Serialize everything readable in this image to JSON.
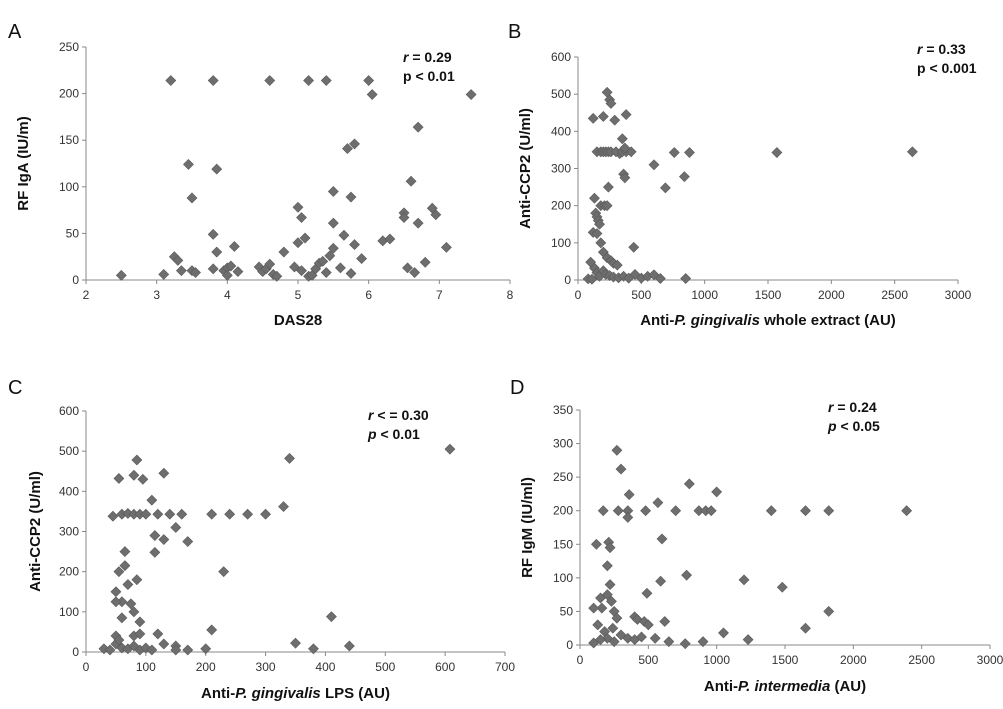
{
  "chart_data": [
    {
      "panel": "A",
      "type": "scatter",
      "xlabel": [
        {
          "t": "DAS28"
        }
      ],
      "ylabel": [
        {
          "t": "RF IgA (IU/m)"
        }
      ],
      "xlim": [
        2,
        8
      ],
      "ylim": [
        0,
        250
      ],
      "xticks": [
        "2",
        "3",
        "4",
        "5",
        "6",
        "7",
        "8"
      ],
      "yticks": [
        "0",
        "50",
        "100",
        "150",
        "200",
        "250"
      ],
      "annotation": [
        [
          {
            "t": "r",
            "i": true
          },
          {
            "t": " = 0.29"
          }
        ],
        [
          {
            "t": "p < 0.01"
          }
        ]
      ],
      "points": [
        [
          2.5,
          5
        ],
        [
          3.2,
          214
        ],
        [
          3.8,
          214
        ],
        [
          4.6,
          214
        ],
        [
          5.15,
          214
        ],
        [
          5.4,
          214
        ],
        [
          6.0,
          214
        ],
        [
          6.05,
          199
        ],
        [
          7.45,
          199
        ],
        [
          3.45,
          124
        ],
        [
          3.85,
          119
        ],
        [
          3.5,
          88
        ],
        [
          3.25,
          25
        ],
        [
          3.3,
          21
        ],
        [
          3.1,
          6
        ],
        [
          3.35,
          10
        ],
        [
          3.5,
          10
        ],
        [
          3.55,
          8
        ],
        [
          3.8,
          49
        ],
        [
          3.85,
          30
        ],
        [
          3.8,
          12
        ],
        [
          3.95,
          10
        ],
        [
          4.0,
          13
        ],
        [
          4.05,
          15
        ],
        [
          4.1,
          36
        ],
        [
          4.15,
          9
        ],
        [
          4.0,
          5
        ],
        [
          4.45,
          14
        ],
        [
          4.5,
          9
        ],
        [
          4.55,
          12
        ],
        [
          4.6,
          17
        ],
        [
          4.65,
          6
        ],
        [
          4.7,
          4
        ],
        [
          4.8,
          30
        ],
        [
          4.95,
          14
        ],
        [
          5.0,
          40
        ],
        [
          5.0,
          78
        ],
        [
          5.05,
          67
        ],
        [
          5.1,
          45
        ],
        [
          5.05,
          10
        ],
        [
          5.15,
          4
        ],
        [
          5.2,
          5
        ],
        [
          5.25,
          12
        ],
        [
          5.3,
          18
        ],
        [
          5.35,
          20
        ],
        [
          5.4,
          8
        ],
        [
          5.45,
          26
        ],
        [
          5.5,
          34
        ],
        [
          5.5,
          61
        ],
        [
          5.5,
          95
        ],
        [
          5.6,
          13
        ],
        [
          5.65,
          48
        ],
        [
          5.7,
          141
        ],
        [
          5.75,
          7
        ],
        [
          5.75,
          89
        ],
        [
          5.8,
          146
        ],
        [
          5.8,
          38
        ],
        [
          5.9,
          23
        ],
        [
          6.2,
          42
        ],
        [
          6.3,
          44
        ],
        [
          6.5,
          72
        ],
        [
          6.5,
          67
        ],
        [
          6.55,
          13
        ],
        [
          6.6,
          106
        ],
        [
          6.65,
          8
        ],
        [
          6.7,
          61
        ],
        [
          6.7,
          164
        ],
        [
          6.8,
          19
        ],
        [
          6.9,
          77
        ],
        [
          6.95,
          70
        ],
        [
          7.1,
          35
        ]
      ]
    },
    {
      "panel": "B",
      "type": "scatter",
      "xlabel": [
        {
          "t": "Anti-"
        },
        {
          "t": "P. gingivalis",
          "i": true
        },
        {
          "t": " whole extract (AU)"
        }
      ],
      "ylabel": [
        {
          "t": "Anti-CCP2 (U/ml)"
        }
      ],
      "xlim": [
        0,
        3000
      ],
      "ylim": [
        0,
        600
      ],
      "xticks": [
        "0",
        "500",
        "1000",
        "1500",
        "2000",
        "2500",
        "3000"
      ],
      "yticks": [
        "0",
        "100",
        "200",
        "300",
        "400",
        "500",
        "600"
      ],
      "annotation": [
        [
          {
            "t": "r",
            "i": true
          },
          {
            "t": " = 0.33"
          }
        ],
        [
          {
            "t": "p < 0.001"
          }
        ]
      ],
      "points": [
        [
          230,
          505
        ],
        [
          250,
          485
        ],
        [
          260,
          475
        ],
        [
          200,
          440
        ],
        [
          120,
          435
        ],
        [
          380,
          445
        ],
        [
          350,
          380
        ],
        [
          290,
          430
        ],
        [
          330,
          340
        ],
        [
          150,
          345
        ],
        [
          180,
          345
        ],
        [
          200,
          345
        ],
        [
          220,
          345
        ],
        [
          240,
          345
        ],
        [
          260,
          345
        ],
        [
          300,
          345
        ],
        [
          350,
          345
        ],
        [
          380,
          345
        ],
        [
          420,
          345
        ],
        [
          370,
          355
        ],
        [
          360,
          285
        ],
        [
          370,
          275
        ],
        [
          600,
          310
        ],
        [
          690,
          248
        ],
        [
          760,
          343
        ],
        [
          880,
          343
        ],
        [
          840,
          278
        ],
        [
          1570,
          343
        ],
        [
          2640,
          345
        ],
        [
          240,
          250
        ],
        [
          130,
          220
        ],
        [
          140,
          180
        ],
        [
          150,
          170
        ],
        [
          160,
          160
        ],
        [
          170,
          150
        ],
        [
          180,
          200
        ],
        [
          210,
          200
        ],
        [
          230,
          200
        ],
        [
          120,
          128
        ],
        [
          150,
          125
        ],
        [
          180,
          100
        ],
        [
          200,
          75
        ],
        [
          230,
          60
        ],
        [
          260,
          52
        ],
        [
          280,
          45
        ],
        [
          310,
          40
        ],
        [
          440,
          88
        ],
        [
          100,
          48
        ],
        [
          130,
          32
        ],
        [
          150,
          20
        ],
        [
          170,
          10
        ],
        [
          200,
          25
        ],
        [
          220,
          15
        ],
        [
          250,
          12
        ],
        [
          280,
          8
        ],
        [
          320,
          6
        ],
        [
          360,
          10
        ],
        [
          400,
          5
        ],
        [
          450,
          15
        ],
        [
          500,
          5
        ],
        [
          550,
          10
        ],
        [
          600,
          14
        ],
        [
          650,
          4
        ],
        [
          850,
          4
        ],
        [
          80,
          3
        ],
        [
          110,
          2
        ]
      ]
    },
    {
      "panel": "C",
      "type": "scatter",
      "xlabel": [
        {
          "t": "Anti-"
        },
        {
          "t": "P. gingivalis",
          "i": true
        },
        {
          "t": " LPS (AU)"
        }
      ],
      "ylabel": [
        {
          "t": "Anti-CCP2 (U/ml)"
        }
      ],
      "xlim": [
        0,
        700
      ],
      "ylim": [
        0,
        600
      ],
      "xticks": [
        "0",
        "100",
        "200",
        "300",
        "400",
        "500",
        "600",
        "700"
      ],
      "yticks": [
        "0",
        "100",
        "200",
        "300",
        "400",
        "500",
        "600"
      ],
      "annotation": [
        [
          {
            "t": "r",
            "i": true
          },
          {
            "t": " < = 0.30"
          }
        ],
        [
          {
            "t": "p",
            "i": true
          },
          {
            "t": " < 0.01"
          }
        ]
      ],
      "points": [
        [
          608,
          505
        ],
        [
          340,
          482
        ],
        [
          85,
          478
        ],
        [
          80,
          440
        ],
        [
          95,
          430
        ],
        [
          130,
          445
        ],
        [
          55,
          432
        ],
        [
          110,
          378
        ],
        [
          45,
          338
        ],
        [
          60,
          343
        ],
        [
          70,
          345
        ],
        [
          80,
          343
        ],
        [
          90,
          343
        ],
        [
          100,
          343
        ],
        [
          120,
          343
        ],
        [
          140,
          343
        ],
        [
          160,
          343
        ],
        [
          210,
          343
        ],
        [
          240,
          343
        ],
        [
          270,
          343
        ],
        [
          300,
          343
        ],
        [
          330,
          362
        ],
        [
          115,
          290
        ],
        [
          130,
          280
        ],
        [
          150,
          310
        ],
        [
          170,
          275
        ],
        [
          115,
          248
        ],
        [
          65,
          250
        ],
        [
          55,
          200
        ],
        [
          65,
          215
        ],
        [
          85,
          180
        ],
        [
          70,
          168
        ],
        [
          230,
          200
        ],
        [
          50,
          150
        ],
        [
          60,
          125
        ],
        [
          50,
          125
        ],
        [
          75,
          120
        ],
        [
          80,
          100
        ],
        [
          60,
          85
        ],
        [
          90,
          75
        ],
        [
          80,
          40
        ],
        [
          90,
          45
        ],
        [
          120,
          45
        ],
        [
          50,
          40
        ],
        [
          210,
          55
        ],
        [
          410,
          88
        ],
        [
          30,
          8
        ],
        [
          40,
          5
        ],
        [
          50,
          20
        ],
        [
          55,
          30
        ],
        [
          60,
          10
        ],
        [
          70,
          8
        ],
        [
          80,
          15
        ],
        [
          90,
          5
        ],
        [
          100,
          10
        ],
        [
          110,
          5
        ],
        [
          130,
          20
        ],
        [
          150,
          15
        ],
        [
          170,
          5
        ],
        [
          200,
          8
        ],
        [
          350,
          22
        ],
        [
          380,
          8
        ],
        [
          440,
          15
        ],
        [
          150,
          5
        ]
      ]
    },
    {
      "panel": "D",
      "type": "scatter",
      "xlabel": [
        {
          "t": "Anti-"
        },
        {
          "t": "P. intermedia",
          "i": true
        },
        {
          "t": " (AU)"
        }
      ],
      "ylabel": [
        {
          "t": "RF  IgM (IU/ml)"
        }
      ],
      "xlim": [
        0,
        3000
      ],
      "ylim": [
        0,
        350
      ],
      "xticks": [
        "0",
        "500",
        "1000",
        "1500",
        "2000",
        "2500",
        "3000"
      ],
      "yticks": [
        "0",
        "50",
        "100",
        "150",
        "200",
        "250",
        "300",
        "350"
      ],
      "annotation": [
        [
          {
            "t": "r",
            "i": true
          },
          {
            "t": " = 0.24"
          }
        ],
        [
          {
            "t": "p",
            "i": true
          },
          {
            "t": " < 0.05"
          }
        ]
      ],
      "points": [
        [
          270,
          290
        ],
        [
          300,
          262
        ],
        [
          800,
          240
        ],
        [
          1000,
          228
        ],
        [
          360,
          224
        ],
        [
          570,
          212
        ],
        [
          170,
          200
        ],
        [
          280,
          200
        ],
        [
          350,
          200
        ],
        [
          480,
          200
        ],
        [
          700,
          200
        ],
        [
          870,
          200
        ],
        [
          920,
          200
        ],
        [
          960,
          200
        ],
        [
          1400,
          200
        ],
        [
          1650,
          200
        ],
        [
          1820,
          200
        ],
        [
          2390,
          200
        ],
        [
          350,
          190
        ],
        [
          600,
          158
        ],
        [
          210,
          153
        ],
        [
          220,
          145
        ],
        [
          120,
          150
        ],
        [
          200,
          118
        ],
        [
          1200,
          97
        ],
        [
          1480,
          86
        ],
        [
          780,
          104
        ],
        [
          590,
          95
        ],
        [
          220,
          90
        ],
        [
          490,
          77
        ],
        [
          150,
          70
        ],
        [
          200,
          75
        ],
        [
          230,
          65
        ],
        [
          160,
          55
        ],
        [
          100,
          55
        ],
        [
          250,
          50
        ],
        [
          1820,
          50
        ],
        [
          270,
          40
        ],
        [
          400,
          42
        ],
        [
          420,
          38
        ],
        [
          470,
          35
        ],
        [
          500,
          30
        ],
        [
          620,
          35
        ],
        [
          1650,
          25
        ],
        [
          130,
          30
        ],
        [
          180,
          20
        ],
        [
          240,
          25
        ],
        [
          300,
          15
        ],
        [
          350,
          10
        ],
        [
          200,
          10
        ],
        [
          250,
          5
        ],
        [
          400,
          8
        ],
        [
          450,
          12
        ],
        [
          550,
          10
        ],
        [
          650,
          5
        ],
        [
          770,
          2
        ],
        [
          900,
          5
        ],
        [
          1050,
          18
        ],
        [
          1230,
          8
        ],
        [
          100,
          3
        ],
        [
          150,
          8
        ]
      ]
    }
  ]
}
